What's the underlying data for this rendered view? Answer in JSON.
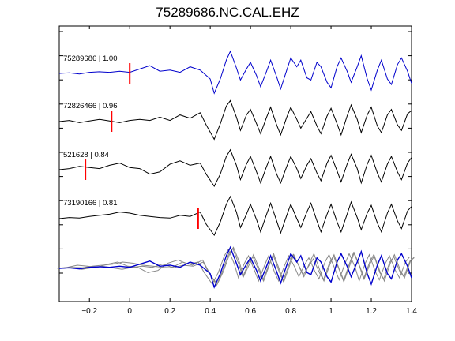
{
  "chart_data": {
    "type": "line",
    "title": "75289686.NC.CAL.EHZ",
    "xlabel": "",
    "ylabel": "",
    "xlim": [
      -0.35,
      1.4
    ],
    "x_ticks": [
      -0.2,
      0,
      0.2,
      0.4,
      0.6,
      0.8,
      1,
      1.2,
      1.4
    ],
    "x_tick_labels": [
      "−0.2",
      "0",
      "0.2",
      "0.4",
      "0.6",
      "0.8",
      "1",
      "1.2",
      "1.4"
    ],
    "grid": false,
    "colors": {
      "reference": "#0000cc",
      "trace": "#000000",
      "pick": "#ff0000",
      "overlay": "#888888"
    },
    "traces": [
      {
        "label": "75289686 | 1.00",
        "pick_time": 0.0,
        "color": "#0000cc",
        "points": [
          [
            -0.35,
            0
          ],
          [
            -0.3,
            0.05
          ],
          [
            -0.25,
            -0.05
          ],
          [
            -0.2,
            0.1
          ],
          [
            -0.15,
            0.15
          ],
          [
            -0.1,
            0.1
          ],
          [
            -0.05,
            0.2
          ],
          [
            0,
            0.1
          ],
          [
            0.05,
            0.4
          ],
          [
            0.1,
            0.7
          ],
          [
            0.15,
            0.2
          ],
          [
            0.2,
            0.3
          ],
          [
            0.25,
            0.1
          ],
          [
            0.3,
            0.6
          ],
          [
            0.35,
            0.3
          ],
          [
            0.4,
            -0.5
          ],
          [
            0.42,
            -1.8
          ],
          [
            0.45,
            -0.5
          ],
          [
            0.48,
            1.2
          ],
          [
            0.5,
            2.0
          ],
          [
            0.53,
            0.5
          ],
          [
            0.55,
            -0.6
          ],
          [
            0.58,
            0.4
          ],
          [
            0.6,
            1.0
          ],
          [
            0.63,
            -0.2
          ],
          [
            0.65,
            -1.2
          ],
          [
            0.68,
            0.2
          ],
          [
            0.7,
            1.2
          ],
          [
            0.73,
            -0.3
          ],
          [
            0.75,
            -1.4
          ],
          [
            0.78,
            0.3
          ],
          [
            0.8,
            1.4
          ],
          [
            0.83,
            0.6
          ],
          [
            0.85,
            1.2
          ],
          [
            0.88,
            -0.4
          ],
          [
            0.9,
            -0.6
          ],
          [
            0.93,
            1.0
          ],
          [
            0.95,
            0.6
          ],
          [
            0.98,
            -0.8
          ],
          [
            1.0,
            -1.3
          ],
          [
            1.03,
            0.6
          ],
          [
            1.05,
            1.4
          ],
          [
            1.08,
            0.2
          ],
          [
            1.1,
            -0.8
          ],
          [
            1.13,
            0.6
          ],
          [
            1.15,
            1.6
          ],
          [
            1.18,
            -0.5
          ],
          [
            1.2,
            -1.5
          ],
          [
            1.23,
            0.3
          ],
          [
            1.25,
            1.2
          ],
          [
            1.28,
            -0.5
          ],
          [
            1.3,
            -1.0
          ],
          [
            1.33,
            0.8
          ],
          [
            1.35,
            1.4
          ],
          [
            1.38,
            0.2
          ],
          [
            1.4,
            -0.9
          ]
        ]
      },
      {
        "label": "72826466 | 0.96",
        "pick_time": -0.09,
        "color": "#000000",
        "points": [
          [
            -0.35,
            0
          ],
          [
            -0.3,
            0.1
          ],
          [
            -0.25,
            -0.1
          ],
          [
            -0.2,
            0.05
          ],
          [
            -0.15,
            0.2
          ],
          [
            -0.1,
            0.05
          ],
          [
            -0.05,
            -0.1
          ],
          [
            0,
            0.1
          ],
          [
            0.05,
            0.2
          ],
          [
            0.1,
            0.1
          ],
          [
            0.15,
            0.4
          ],
          [
            0.2,
            0.1
          ],
          [
            0.25,
            0.6
          ],
          [
            0.3,
            0.3
          ],
          [
            0.35,
            0.8
          ],
          [
            0.38,
            -0.3
          ],
          [
            0.42,
            -1.6
          ],
          [
            0.45,
            -0.2
          ],
          [
            0.48,
            1.4
          ],
          [
            0.5,
            1.9
          ],
          [
            0.53,
            0.4
          ],
          [
            0.55,
            -0.8
          ],
          [
            0.58,
            0.6
          ],
          [
            0.6,
            1.1
          ],
          [
            0.63,
            -0.2
          ],
          [
            0.65,
            -1.1
          ],
          [
            0.68,
            0.4
          ],
          [
            0.7,
            1.3
          ],
          [
            0.73,
            -0.3
          ],
          [
            0.75,
            -1.2
          ],
          [
            0.78,
            0.4
          ],
          [
            0.8,
            1.3
          ],
          [
            0.83,
            0.2
          ],
          [
            0.85,
            -0.6
          ],
          [
            0.88,
            0.3
          ],
          [
            0.9,
            0.9
          ],
          [
            0.93,
            -0.4
          ],
          [
            0.95,
            -1.1
          ],
          [
            0.98,
            0.5
          ],
          [
            1.0,
            1.2
          ],
          [
            1.03,
            -0.2
          ],
          [
            1.05,
            -1.2
          ],
          [
            1.08,
            0.5
          ],
          [
            1.1,
            1.5
          ],
          [
            1.13,
            0.2
          ],
          [
            1.15,
            -1.0
          ],
          [
            1.18,
            0.6
          ],
          [
            1.2,
            1.3
          ],
          [
            1.23,
            -0.4
          ],
          [
            1.25,
            -1.0
          ],
          [
            1.28,
            0.6
          ],
          [
            1.3,
            1.1
          ],
          [
            1.33,
            -0.3
          ],
          [
            1.35,
            -0.8
          ],
          [
            1.38,
            0.7
          ],
          [
            1.4,
            1.0
          ]
        ]
      },
      {
        "label": "521628 | 0.84",
        "pick_time": -0.22,
        "color": "#000000",
        "points": [
          [
            -0.35,
            0
          ],
          [
            -0.3,
            0.1
          ],
          [
            -0.25,
            0.3
          ],
          [
            -0.2,
            0.2
          ],
          [
            -0.15,
            0.1
          ],
          [
            -0.1,
            0.4
          ],
          [
            -0.05,
            0.6
          ],
          [
            0,
            0.2
          ],
          [
            0.05,
            0.1
          ],
          [
            0.1,
            -0.4
          ],
          [
            0.15,
            -0.2
          ],
          [
            0.2,
            0.5
          ],
          [
            0.25,
            0.8
          ],
          [
            0.3,
            0.4
          ],
          [
            0.35,
            0.6
          ],
          [
            0.38,
            -0.4
          ],
          [
            0.42,
            -1.5
          ],
          [
            0.45,
            -0.4
          ],
          [
            0.48,
            1.2
          ],
          [
            0.5,
            1.8
          ],
          [
            0.53,
            0.4
          ],
          [
            0.55,
            -0.9
          ],
          [
            0.58,
            0.5
          ],
          [
            0.6,
            1.2
          ],
          [
            0.63,
            -0.2
          ],
          [
            0.65,
            -1.2
          ],
          [
            0.68,
            0.3
          ],
          [
            0.7,
            1.2
          ],
          [
            0.73,
            -0.4
          ],
          [
            0.75,
            -1.2
          ],
          [
            0.78,
            0.3
          ],
          [
            0.8,
            1.2
          ],
          [
            0.83,
            0.1
          ],
          [
            0.85,
            -0.8
          ],
          [
            0.88,
            0.4
          ],
          [
            0.9,
            1.0
          ],
          [
            0.93,
            -0.3
          ],
          [
            0.95,
            -1.0
          ],
          [
            0.98,
            0.6
          ],
          [
            1.0,
            1.3
          ],
          [
            1.03,
            -0.1
          ],
          [
            1.05,
            -1.1
          ],
          [
            1.08,
            0.5
          ],
          [
            1.1,
            1.4
          ],
          [
            1.13,
            0.1
          ],
          [
            1.15,
            -1.2
          ],
          [
            1.18,
            0.5
          ],
          [
            1.2,
            1.3
          ],
          [
            1.23,
            -0.3
          ],
          [
            1.25,
            -1.1
          ],
          [
            1.28,
            0.5
          ],
          [
            1.3,
            1.2
          ],
          [
            1.33,
            -0.2
          ],
          [
            1.35,
            -0.9
          ],
          [
            1.38,
            0.6
          ],
          [
            1.4,
            1.1
          ]
        ]
      },
      {
        "label": "73190166 | 0.81",
        "pick_time": 0.34,
        "color": "#000000",
        "points": [
          [
            -0.35,
            0
          ],
          [
            -0.3,
            0.1
          ],
          [
            -0.25,
            0.05
          ],
          [
            -0.2,
            0.2
          ],
          [
            -0.15,
            0.3
          ],
          [
            -0.1,
            0.4
          ],
          [
            -0.05,
            0.6
          ],
          [
            0,
            0.5
          ],
          [
            0.05,
            0.3
          ],
          [
            0.1,
            0.2
          ],
          [
            0.15,
            0.1
          ],
          [
            0.2,
            0.05
          ],
          [
            0.25,
            0.3
          ],
          [
            0.3,
            0.2
          ],
          [
            0.35,
            0.6
          ],
          [
            0.38,
            -0.5
          ],
          [
            0.42,
            -1.5
          ],
          [
            0.45,
            -0.3
          ],
          [
            0.48,
            1.3
          ],
          [
            0.5,
            2.0
          ],
          [
            0.53,
            0.6
          ],
          [
            0.55,
            -0.8
          ],
          [
            0.58,
            0.4
          ],
          [
            0.6,
            1.3
          ],
          [
            0.63,
            -0.1
          ],
          [
            0.65,
            -1.2
          ],
          [
            0.68,
            0.4
          ],
          [
            0.7,
            1.4
          ],
          [
            0.73,
            -0.2
          ],
          [
            0.75,
            -1.3
          ],
          [
            0.78,
            0.3
          ],
          [
            0.8,
            1.3
          ],
          [
            0.83,
            0.0
          ],
          [
            0.85,
            -0.8
          ],
          [
            0.88,
            0.6
          ],
          [
            0.9,
            1.4
          ],
          [
            0.93,
            -0.2
          ],
          [
            0.95,
            -1.2
          ],
          [
            0.98,
            0.4
          ],
          [
            1.0,
            1.3
          ],
          [
            1.03,
            -0.3
          ],
          [
            1.05,
            -1.2
          ],
          [
            1.08,
            0.4
          ],
          [
            1.1,
            1.5
          ],
          [
            1.13,
            0.1
          ],
          [
            1.15,
            -1.0
          ],
          [
            1.18,
            0.5
          ],
          [
            1.2,
            1.2
          ],
          [
            1.23,
            -0.4
          ],
          [
            1.25,
            -1.2
          ],
          [
            1.28,
            0.5
          ],
          [
            1.3,
            1.3
          ],
          [
            1.33,
            -0.2
          ],
          [
            1.35,
            -0.9
          ],
          [
            1.38,
            0.7
          ],
          [
            1.4,
            1.1
          ]
        ]
      }
    ],
    "overlay": {
      "label": ""
    }
  }
}
